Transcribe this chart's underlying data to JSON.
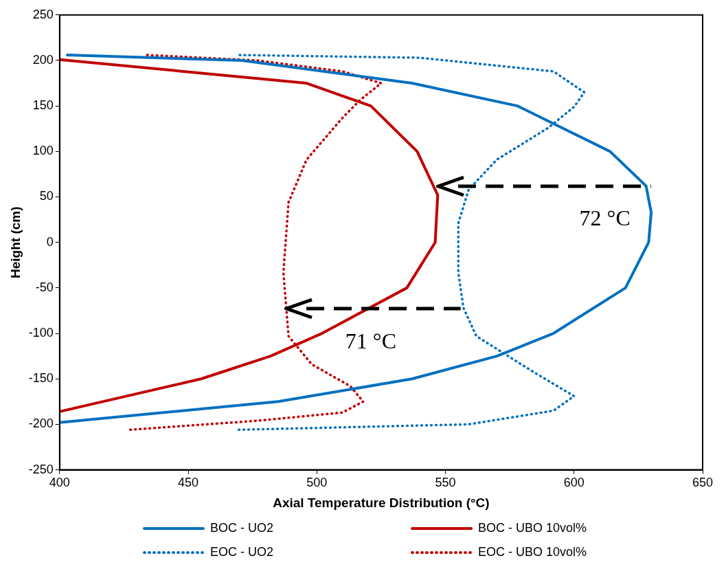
{
  "chart_data": {
    "type": "line",
    "xlabel": "Axial Temperature Distribution (°C)",
    "ylabel": "Height (cm)",
    "xlim": [
      400,
      650
    ],
    "xticks": [
      400,
      450,
      500,
      550,
      600,
      650
    ],
    "ylim": [
      -250,
      250
    ],
    "yticks": [
      -250,
      -200,
      -150,
      -100,
      -50,
      0,
      50,
      100,
      150,
      200,
      250
    ],
    "grid": false,
    "legend": "bottom",
    "marker": "none",
    "series": [
      {
        "name": "BOC - UO2",
        "color": "#0070c0",
        "line_style": "solid",
        "x": [
          403,
          471,
          537,
          578,
          614,
          628,
          630,
          629,
          620,
          592,
          570,
          537,
          485,
          400
        ],
        "values": [
          206,
          200,
          175,
          150,
          100,
          62,
          33,
          0,
          -50,
          -100,
          -125,
          -150,
          -175,
          -198
        ]
      },
      {
        "name": "BOC - UBO 10vol%",
        "color": "#c00000",
        "line_style": "solid",
        "x": [
          400,
          496,
          521,
          539,
          547,
          546,
          535,
          502,
          482,
          455,
          400
        ],
        "values": [
          201,
          175,
          150,
          100,
          52,
          0,
          -50,
          -100,
          -125,
          -150,
          -186
        ]
      },
      {
        "name": "EOC - UO2",
        "color": "#0070c0",
        "line_style": "dotted",
        "x": [
          470,
          540,
          592,
          604,
          600,
          590,
          570,
          559,
          555,
          555,
          557,
          562,
          584,
          600,
          592,
          559,
          469
        ],
        "values": [
          206,
          203,
          188,
          165,
          149,
          126,
          91,
          58,
          21,
          -33,
          -72,
          -103,
          -142,
          -169,
          -185,
          -200,
          -206
        ]
      },
      {
        "name": "EOC - UBO 10vol%",
        "color": "#c00000",
        "line_style": "dotted",
        "x": [
          434,
          477,
          510,
          525,
          517,
          510,
          496,
          489,
          487,
          489,
          498,
          513,
          518,
          510,
          477,
          427
        ],
        "values": [
          206,
          200,
          188,
          175,
          157,
          137,
          91,
          44,
          -33,
          -103,
          -134,
          -158,
          -175,
          -187,
          -196,
          -206
        ]
      }
    ],
    "annotations": [
      "72 °C",
      "71 °C"
    ]
  }
}
